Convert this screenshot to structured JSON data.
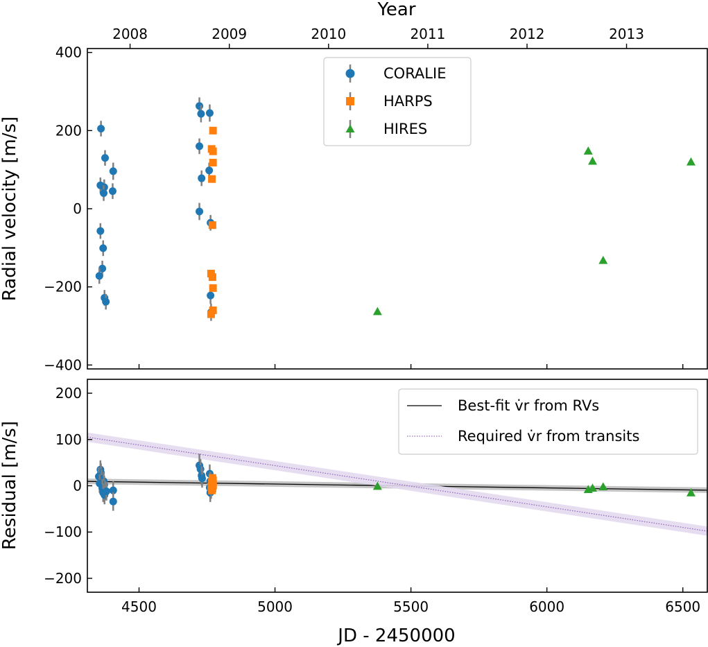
{
  "chart_data": [
    {
      "type": "scatter",
      "panel": "top",
      "title": "",
      "xlabel": "JD - 2450000",
      "ylabel": "Radial velocity [m/s]",
      "xlim": [
        4310,
        6590
      ],
      "ylim": [
        -410,
        410
      ],
      "yticks": [
        -400,
        -200,
        0,
        200,
        400
      ],
      "ytick_labels": [
        "−400",
        "−200",
        "0",
        "200",
        "400"
      ],
      "top_axis": {
        "label": "Year",
        "ticks": [
          {
            "jd": 4467,
            "label": "2008"
          },
          {
            "jd": 4832,
            "label": "2009"
          },
          {
            "jd": 5197,
            "label": "2010"
          },
          {
            "jd": 5562,
            "label": "2011"
          },
          {
            "jd": 5927,
            "label": "2012"
          },
          {
            "jd": 6293,
            "label": "2013"
          }
        ]
      },
      "legend": {
        "position": "top-center",
        "entries": [
          "CORALIE",
          "HARPS",
          "HIRES"
        ]
      },
      "series": [
        {
          "name": "CORALIE",
          "marker": "circle",
          "color": "#1f77b4",
          "points": [
            {
              "x": 4360,
              "y": 205,
              "err": 20
            },
            {
              "x": 4375,
              "y": 130,
              "err": 20
            },
            {
              "x": 4405,
              "y": 96,
              "err": 22
            },
            {
              "x": 4358,
              "y": 60,
              "err": 20
            },
            {
              "x": 4372,
              "y": 55,
              "err": 20
            },
            {
              "x": 4370,
              "y": 40,
              "err": 20
            },
            {
              "x": 4403,
              "y": 45,
              "err": 20
            },
            {
              "x": 4358,
              "y": -57,
              "err": 20
            },
            {
              "x": 4368,
              "y": -101,
              "err": 20
            },
            {
              "x": 4365,
              "y": -153,
              "err": 20
            },
            {
              "x": 4354,
              "y": -172,
              "err": 20
            },
            {
              "x": 4373,
              "y": -228,
              "err": 20
            },
            {
              "x": 4378,
              "y": -238,
              "err": 20
            },
            {
              "x": 4722,
              "y": 263,
              "err": 22
            },
            {
              "x": 4728,
              "y": 243,
              "err": 22
            },
            {
              "x": 4760,
              "y": 245,
              "err": 22
            },
            {
              "x": 4722,
              "y": 160,
              "err": 20
            },
            {
              "x": 4758,
              "y": 98,
              "err": 20
            },
            {
              "x": 4730,
              "y": 78,
              "err": 20
            },
            {
              "x": 4722,
              "y": -7,
              "err": 22
            },
            {
              "x": 4763,
              "y": -36,
              "err": 20
            },
            {
              "x": 4763,
              "y": -222,
              "err": 22
            },
            {
              "x": 4765,
              "y": -265,
              "err": 22
            }
          ]
        },
        {
          "name": "HARPS",
          "marker": "square",
          "color": "#ff7f0e",
          "points": [
            {
              "x": 4772,
              "y": 200,
              "err": 6
            },
            {
              "x": 4767,
              "y": 153,
              "err": 6
            },
            {
              "x": 4772,
              "y": 147,
              "err": 6
            },
            {
              "x": 4772,
              "y": 118,
              "err": 6
            },
            {
              "x": 4768,
              "y": 76,
              "err": 6
            },
            {
              "x": 4770,
              "y": -42,
              "err": 6
            },
            {
              "x": 4765,
              "y": -166,
              "err": 6
            },
            {
              "x": 4770,
              "y": -175,
              "err": 6
            },
            {
              "x": 4772,
              "y": -203,
              "err": 6
            },
            {
              "x": 4772,
              "y": -260,
              "err": 6
            },
            {
              "x": 4765,
              "y": -270,
              "err": 6
            }
          ]
        },
        {
          "name": "HIRES",
          "marker": "triangle",
          "color": "#2ca02c",
          "points": [
            {
              "x": 5377,
              "y": -263,
              "err": 3
            },
            {
              "x": 6152,
              "y": 148,
              "err": 3
            },
            {
              "x": 6168,
              "y": 122,
              "err": 3
            },
            {
              "x": 6207,
              "y": -132,
              "err": 3
            },
            {
              "x": 6530,
              "y": 120,
              "err": 3
            }
          ]
        }
      ]
    },
    {
      "type": "scatter",
      "panel": "bottom",
      "title": "",
      "xlabel": "JD - 2450000",
      "ylabel": "Residual [m/s]",
      "xlim": [
        4310,
        6590
      ],
      "ylim": [
        -230,
        230
      ],
      "xticks": [
        4500,
        5000,
        5500,
        6000,
        6500
      ],
      "xtick_labels": [
        "4500",
        "5000",
        "5500",
        "6000",
        "6500"
      ],
      "yticks": [
        -200,
        -100,
        0,
        100,
        200
      ],
      "ytick_labels": [
        "−200",
        "−100",
        "0",
        "100",
        "200"
      ],
      "legend": {
        "position": "top-right",
        "entries": [
          "Best-fit v̇r from RVs",
          "Required v̇r from transits"
        ]
      },
      "lines": [
        {
          "name": "Best-fit v̇r from RVs",
          "style": "solid",
          "color": "#000000",
          "x": [
            4310,
            6590
          ],
          "y": [
            9.5,
            -9.5
          ],
          "band": 6,
          "band_color": "#bfbfbf"
        },
        {
          "name": "Required v̇r from transits",
          "style": "dotted",
          "color": "#9467bd",
          "x": [
            4310,
            6590
          ],
          "y": [
            105,
            -98
          ],
          "band": 10,
          "band_color": "#e3d9f0"
        }
      ],
      "series": [
        {
          "name": "CORALIE",
          "marker": "circle",
          "color": "#1f77b4",
          "points": [
            {
              "x": 4358,
              "y": 35,
              "err": 20
            },
            {
              "x": 4360,
              "y": 28,
              "err": 20
            },
            {
              "x": 4352,
              "y": 20,
              "err": 20
            },
            {
              "x": 4362,
              "y": 15,
              "err": 20
            },
            {
              "x": 4370,
              "y": 10,
              "err": 20
            },
            {
              "x": 4355,
              "y": 5,
              "err": 20
            },
            {
              "x": 4372,
              "y": 2,
              "err": 20
            },
            {
              "x": 4365,
              "y": -5,
              "err": 20
            },
            {
              "x": 4375,
              "y": -10,
              "err": 20
            },
            {
              "x": 4368,
              "y": -15,
              "err": 20
            },
            {
              "x": 4373,
              "y": -20,
              "err": 20
            },
            {
              "x": 4380,
              "y": -12,
              "err": 20
            },
            {
              "x": 4405,
              "y": -10,
              "err": 20
            },
            {
              "x": 4405,
              "y": -34,
              "err": 20
            },
            {
              "x": 4722,
              "y": 44,
              "err": 25
            },
            {
              "x": 4726,
              "y": 36,
              "err": 22
            },
            {
              "x": 4730,
              "y": 22,
              "err": 20
            },
            {
              "x": 4732,
              "y": 16,
              "err": 20
            },
            {
              "x": 4760,
              "y": 26,
              "err": 20
            },
            {
              "x": 4762,
              "y": 10,
              "err": 20
            },
            {
              "x": 4760,
              "y": -4,
              "err": 20
            },
            {
              "x": 4762,
              "y": -15,
              "err": 20
            },
            {
              "x": 4765,
              "y": -8,
              "err": 20
            }
          ]
        },
        {
          "name": "HARPS",
          "marker": "square",
          "color": "#ff7f0e",
          "points": [
            {
              "x": 4770,
              "y": 17,
              "err": 6
            },
            {
              "x": 4772,
              "y": 12,
              "err": 6
            },
            {
              "x": 4768,
              "y": 8,
              "err": 6
            },
            {
              "x": 4772,
              "y": 3,
              "err": 6
            },
            {
              "x": 4766,
              "y": -2,
              "err": 6
            },
            {
              "x": 4770,
              "y": -6,
              "err": 6
            },
            {
              "x": 4768,
              "y": -10,
              "err": 6
            },
            {
              "x": 4772,
              "y": 0,
              "err": 6
            }
          ]
        },
        {
          "name": "HIRES",
          "marker": "triangle",
          "color": "#2ca02c",
          "points": [
            {
              "x": 5377,
              "y": -1,
              "err": 3
            },
            {
              "x": 6152,
              "y": -8,
              "err": 3
            },
            {
              "x": 6168,
              "y": -5,
              "err": 3
            },
            {
              "x": 6207,
              "y": -2,
              "err": 3
            },
            {
              "x": 6530,
              "y": -15,
              "err": 3
            }
          ]
        }
      ]
    }
  ]
}
